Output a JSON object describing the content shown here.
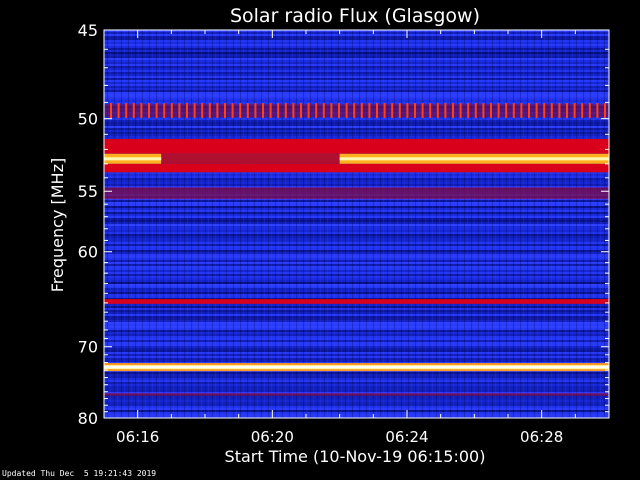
{
  "footer": {
    "updated": "Updated Thu Dec  5 19:21:43 2019"
  },
  "chart_data": {
    "type": "heatmap",
    "title": "Solar radio Flux (Glasgow)",
    "xlabel": "Start Time (10-Nov-19 06:15:00)",
    "ylabel": "Frequency [MHz]",
    "x_tick_labels": [
      "06:16",
      "06:20",
      "06:24",
      "06:28"
    ],
    "x_tick_minutes": [
      1,
      5,
      9,
      13
    ],
    "xlim_minutes": [
      0,
      15
    ],
    "y_tick_labels": [
      "45",
      "50",
      "55",
      "60",
      "70",
      "80"
    ],
    "y_tick_values": [
      45,
      50,
      55,
      60,
      70,
      80
    ],
    "ylim": [
      45,
      80
    ],
    "y_scale": "reciprocal",
    "grid": false,
    "colorscale": [
      "#000028",
      "#0a1aa0",
      "#2a3cff",
      "#d40014",
      "#ff9a20",
      "#ffff80",
      "#ffffff"
    ],
    "bands": [
      {
        "freq_start": 49.1,
        "freq_end": 49.9,
        "intensity": "red-dotted"
      },
      {
        "freq_start": 51.3,
        "freq_end": 52.3,
        "intensity": "red"
      },
      {
        "freq_start": 52.3,
        "freq_end": 53.0,
        "intensity": "orange-yellow",
        "gap_minutes": [
          1.7,
          7.0
        ]
      },
      {
        "freq_start": 53.0,
        "freq_end": 53.6,
        "intensity": "red"
      },
      {
        "freq_start": 54.7,
        "freq_end": 55.6,
        "intensity": "red-faint"
      },
      {
        "freq_start": 64.6,
        "freq_end": 65.1,
        "intensity": "red"
      },
      {
        "freq_start": 72.2,
        "freq_end": 73.0,
        "intensity": "yellow-white"
      },
      {
        "freq_start": 76.2,
        "freq_end": 76.6,
        "intensity": "red-faint"
      }
    ]
  }
}
